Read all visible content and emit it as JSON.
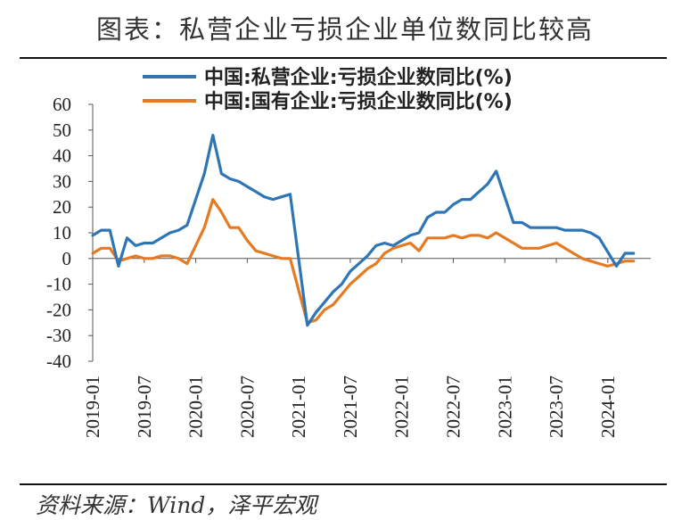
{
  "title": "图表：私营企业亏损企业单位数同比较高",
  "source": "资料来源：Wind，泽平宏观",
  "chart_data": {
    "type": "line",
    "ylim": [
      -40,
      60
    ],
    "yticks": [
      "60",
      "50",
      "40",
      "30",
      "20",
      "10",
      "0",
      "-10",
      "-20",
      "-30",
      "-40"
    ],
    "xticks": [
      "2019-01",
      "2019-07",
      "2020-01",
      "2020-07",
      "2021-01",
      "2021-07",
      "2022-01",
      "2022-07",
      "2023-01",
      "2023-07",
      "2024-01"
    ],
    "legend_position": "top",
    "series": [
      {
        "name": "中国:私营企业:亏损企业数同比(%)",
        "color": "#2e75b6",
        "points": [
          [
            "2019-01",
            9
          ],
          [
            "2019-02",
            11
          ],
          [
            "2019-03",
            11
          ],
          [
            "2019-04",
            -3
          ],
          [
            "2019-05",
            8
          ],
          [
            "2019-06",
            5
          ],
          [
            "2019-07",
            6
          ],
          [
            "2019-08",
            6
          ],
          [
            "2019-09",
            8
          ],
          [
            "2019-10",
            10
          ],
          [
            "2019-11",
            11
          ],
          [
            "2019-12",
            13
          ],
          [
            "2020-02",
            33
          ],
          [
            "2020-03",
            48
          ],
          [
            "2020-04",
            33
          ],
          [
            "2020-05",
            31
          ],
          [
            "2020-06",
            30
          ],
          [
            "2020-07",
            28
          ],
          [
            "2020-08",
            26
          ],
          [
            "2020-09",
            24
          ],
          [
            "2020-10",
            23
          ],
          [
            "2020-11",
            24
          ],
          [
            "2020-12",
            25
          ],
          [
            "2021-02",
            -26
          ],
          [
            "2021-03",
            -21
          ],
          [
            "2021-04",
            -17
          ],
          [
            "2021-05",
            -13
          ],
          [
            "2021-06",
            -10
          ],
          [
            "2021-07",
            -5
          ],
          [
            "2021-08",
            -2
          ],
          [
            "2021-09",
            1
          ],
          [
            "2021-10",
            5
          ],
          [
            "2021-11",
            6
          ],
          [
            "2021-12",
            5
          ],
          [
            "2022-01",
            7
          ],
          [
            "2022-02",
            9
          ],
          [
            "2022-03",
            10
          ],
          [
            "2022-04",
            16
          ],
          [
            "2022-05",
            18
          ],
          [
            "2022-06",
            18
          ],
          [
            "2022-07",
            21
          ],
          [
            "2022-08",
            23
          ],
          [
            "2022-09",
            23
          ],
          [
            "2022-10",
            26
          ],
          [
            "2022-11",
            29
          ],
          [
            "2022-12",
            34
          ],
          [
            "2023-02",
            14
          ],
          [
            "2023-03",
            14
          ],
          [
            "2023-04",
            12
          ],
          [
            "2023-05",
            12
          ],
          [
            "2023-06",
            12
          ],
          [
            "2023-07",
            12
          ],
          [
            "2023-08",
            11
          ],
          [
            "2023-09",
            11
          ],
          [
            "2023-10",
            11
          ],
          [
            "2023-11",
            10
          ],
          [
            "2023-12",
            8
          ],
          [
            "2024-02",
            -3
          ],
          [
            "2024-03",
            2
          ],
          [
            "2024-04",
            2
          ]
        ]
      },
      {
        "name": "中国:国有企业:亏损企业数同比(%)",
        "color": "#e57a23",
        "points": [
          [
            "2019-01",
            2
          ],
          [
            "2019-02",
            4
          ],
          [
            "2019-03",
            4
          ],
          [
            "2019-04",
            -1
          ],
          [
            "2019-05",
            0
          ],
          [
            "2019-06",
            1
          ],
          [
            "2019-07",
            0
          ],
          [
            "2019-08",
            0
          ],
          [
            "2019-09",
            1
          ],
          [
            "2019-10",
            1
          ],
          [
            "2019-11",
            0
          ],
          [
            "2019-12",
            -2
          ],
          [
            "2020-02",
            12
          ],
          [
            "2020-03",
            23
          ],
          [
            "2020-04",
            18
          ],
          [
            "2020-05",
            12
          ],
          [
            "2020-06",
            12
          ],
          [
            "2020-07",
            7
          ],
          [
            "2020-08",
            3
          ],
          [
            "2020-09",
            2
          ],
          [
            "2020-10",
            1
          ],
          [
            "2020-11",
            0
          ],
          [
            "2020-12",
            0
          ],
          [
            "2021-02",
            -25
          ],
          [
            "2021-03",
            -24
          ],
          [
            "2021-04",
            -20
          ],
          [
            "2021-05",
            -18
          ],
          [
            "2021-06",
            -14
          ],
          [
            "2021-07",
            -10
          ],
          [
            "2021-08",
            -7
          ],
          [
            "2021-09",
            -4
          ],
          [
            "2021-10",
            -2
          ],
          [
            "2021-11",
            2
          ],
          [
            "2021-12",
            4
          ],
          [
            "2022-01",
            5
          ],
          [
            "2022-02",
            6
          ],
          [
            "2022-03",
            3
          ],
          [
            "2022-04",
            8
          ],
          [
            "2022-05",
            8
          ],
          [
            "2022-06",
            8
          ],
          [
            "2022-07",
            9
          ],
          [
            "2022-08",
            8
          ],
          [
            "2022-09",
            9
          ],
          [
            "2022-10",
            9
          ],
          [
            "2022-11",
            8
          ],
          [
            "2022-12",
            10
          ],
          [
            "2023-02",
            6
          ],
          [
            "2023-03",
            4
          ],
          [
            "2023-04",
            4
          ],
          [
            "2023-05",
            4
          ],
          [
            "2023-06",
            5
          ],
          [
            "2023-07",
            6
          ],
          [
            "2023-08",
            4
          ],
          [
            "2023-09",
            2
          ],
          [
            "2023-10",
            0
          ],
          [
            "2023-11",
            -1
          ],
          [
            "2023-12",
            -2
          ],
          [
            "2024-01",
            -3
          ],
          [
            "2024-02",
            -2
          ],
          [
            "2024-03",
            -1
          ],
          [
            "2024-04",
            -1
          ]
        ]
      }
    ]
  }
}
